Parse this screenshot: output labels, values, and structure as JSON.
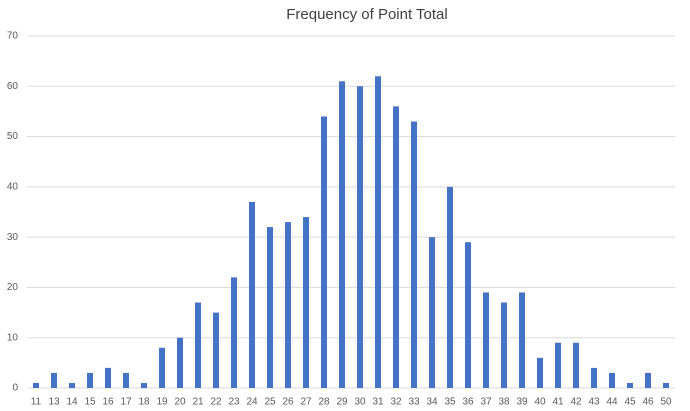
{
  "chart_data": {
    "type": "bar",
    "title": "Frequency of Point Total",
    "categories": [
      "11",
      "13",
      "14",
      "15",
      "16",
      "17",
      "18",
      "19",
      "20",
      "21",
      "22",
      "23",
      "24",
      "25",
      "26",
      "27",
      "28",
      "29",
      "30",
      "31",
      "32",
      "33",
      "34",
      "35",
      "36",
      "37",
      "38",
      "39",
      "40",
      "41",
      "42",
      "43",
      "44",
      "45",
      "46",
      "50"
    ],
    "values": [
      1,
      3,
      1,
      3,
      4,
      3,
      1,
      8,
      10,
      17,
      15,
      22,
      37,
      32,
      33,
      34,
      54,
      61,
      60,
      62,
      56,
      53,
      30,
      40,
      29,
      19,
      17,
      19,
      6,
      9,
      9,
      4,
      3,
      1,
      3,
      1
    ],
    "color": "#4472c4",
    "ylim": [
      0,
      70
    ],
    "yticks": [
      0,
      10,
      20,
      30,
      40,
      50,
      60,
      70
    ],
    "grid": true
  }
}
